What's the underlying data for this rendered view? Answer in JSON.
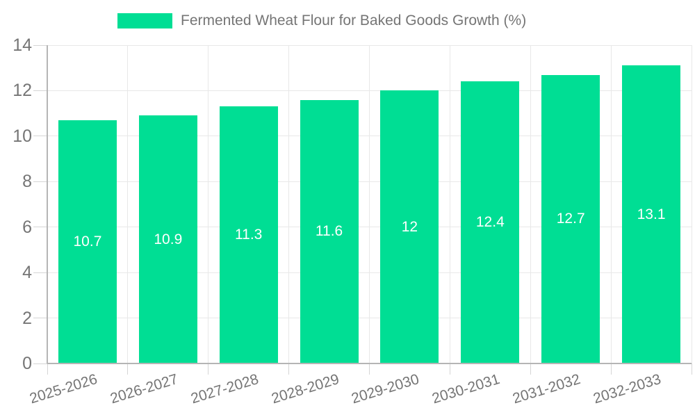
{
  "chart_data": {
    "type": "bar",
    "title": "Fermented Wheat Flour for Baked Goods Growth (%)",
    "legend_position": "top",
    "categories": [
      "2025-2026",
      "2026-2027",
      "2027-2028",
      "2028-2029",
      "2029-2030",
      "2030-2031",
      "2031-2032",
      "2032-2033"
    ],
    "series": [
      {
        "name": "Fermented Wheat Flour for Baked Goods Growth (%)",
        "values": [
          10.7,
          10.9,
          11.3,
          11.6,
          12,
          12.4,
          12.7,
          13.1
        ]
      }
    ],
    "xlabel": "",
    "ylabel": "",
    "ylim": [
      0,
      14
    ],
    "yticks": [
      0,
      2,
      4,
      6,
      8,
      10,
      12,
      14
    ],
    "grid": true,
    "bar_value_labels_inside": true,
    "colors": {
      "bar": "#00DE94",
      "bar_label": "#FFFFFF",
      "axis_text": "#757575",
      "grid_line": "#E8E8E8",
      "axis_line": "#B5B5B5",
      "tick": "#D5D5D5",
      "background": "#FFFFFF"
    }
  }
}
